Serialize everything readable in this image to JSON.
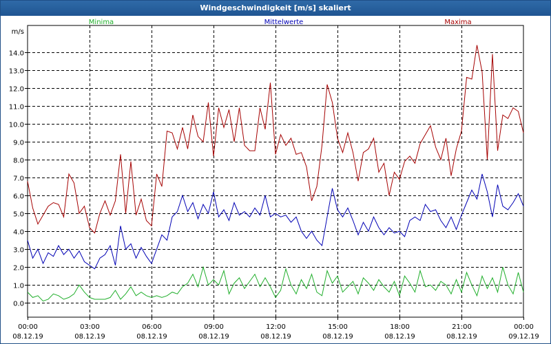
{
  "window": {
    "title": "Windgeschwindigkeit [m/s] skaliert"
  },
  "colors": {
    "min": "#1fae2a",
    "mean": "#0000b4",
    "max": "#a50000"
  },
  "chart_data": {
    "type": "line",
    "title": "Windgeschwindigkeit [m/s] skaliert",
    "ylabel": "m/s",
    "xlabel": "",
    "ylim": [
      -0.8,
      15.5
    ],
    "xlim": [
      0,
      24
    ],
    "grid": true,
    "legend_position": "top",
    "y_ticks": [
      "0.0",
      "1.0",
      "2.0",
      "3.0",
      "4.0",
      "5.0",
      "6.0",
      "7.0",
      "8.0",
      "9.0",
      "10.0",
      "11.0",
      "12.0",
      "13.0",
      "14.0"
    ],
    "x_ticks": [
      {
        "time": "00:00",
        "date": "08.12.19"
      },
      {
        "time": "03:00",
        "date": "08.12.19"
      },
      {
        "time": "06:00",
        "date": "08.12.19"
      },
      {
        "time": "09:00",
        "date": "08.12.19"
      },
      {
        "time": "12:00",
        "date": "08.12.19"
      },
      {
        "time": "15:00",
        "date": "08.12.19"
      },
      {
        "time": "18:00",
        "date": "08.12.19"
      },
      {
        "time": "21:00",
        "date": "08.12.19"
      },
      {
        "time": "00:00",
        "date": "09.12.19"
      }
    ],
    "series": [
      {
        "name": "Minima",
        "key": "min",
        "points": [
          [
            0.0,
            0.6
          ],
          [
            0.25,
            0.3
          ],
          [
            0.5,
            0.4
          ],
          [
            0.75,
            0.1
          ],
          [
            1.0,
            0.2
          ],
          [
            1.25,
            0.5
          ],
          [
            1.5,
            0.4
          ],
          [
            1.75,
            0.2
          ],
          [
            2.0,
            0.3
          ],
          [
            2.25,
            0.5
          ],
          [
            2.5,
            1.0
          ],
          [
            2.75,
            0.6
          ],
          [
            3.0,
            0.3
          ],
          [
            3.25,
            0.2
          ],
          [
            3.5,
            0.2
          ],
          [
            3.75,
            0.2
          ],
          [
            4.0,
            0.3
          ],
          [
            4.25,
            0.7
          ],
          [
            4.5,
            0.2
          ],
          [
            4.75,
            0.5
          ],
          [
            5.0,
            0.9
          ],
          [
            5.25,
            0.4
          ],
          [
            5.5,
            0.6
          ],
          [
            5.75,
            0.4
          ],
          [
            6.0,
            0.3
          ],
          [
            6.25,
            0.4
          ],
          [
            6.5,
            0.3
          ],
          [
            6.75,
            0.4
          ],
          [
            7.0,
            0.6
          ],
          [
            7.25,
            0.5
          ],
          [
            7.5,
            0.9
          ],
          [
            7.75,
            1.1
          ],
          [
            8.0,
            1.6
          ],
          [
            8.25,
            0.9
          ],
          [
            8.5,
            2.0
          ],
          [
            8.75,
            1.0
          ],
          [
            9.0,
            1.3
          ],
          [
            9.25,
            1.0
          ],
          [
            9.5,
            1.8
          ],
          [
            9.75,
            0.5
          ],
          [
            10.0,
            1.1
          ],
          [
            10.25,
            1.4
          ],
          [
            10.5,
            0.8
          ],
          [
            10.75,
            1.2
          ],
          [
            11.0,
            1.6
          ],
          [
            11.25,
            0.9
          ],
          [
            11.5,
            1.4
          ],
          [
            11.75,
            0.9
          ],
          [
            12.0,
            0.3
          ],
          [
            12.25,
            0.7
          ],
          [
            12.5,
            1.9
          ],
          [
            12.75,
            1.0
          ],
          [
            13.0,
            0.5
          ],
          [
            13.25,
            1.3
          ],
          [
            13.5,
            0.8
          ],
          [
            13.75,
            1.6
          ],
          [
            14.0,
            0.6
          ],
          [
            14.25,
            0.4
          ],
          [
            14.5,
            1.8
          ],
          [
            14.75,
            1.1
          ],
          [
            15.0,
            1.5
          ],
          [
            15.25,
            0.6
          ],
          [
            15.5,
            0.9
          ],
          [
            15.75,
            1.2
          ],
          [
            16.0,
            0.5
          ],
          [
            16.25,
            1.4
          ],
          [
            16.5,
            1.1
          ],
          [
            16.75,
            0.7
          ],
          [
            17.0,
            1.3
          ],
          [
            17.25,
            0.9
          ],
          [
            17.5,
            0.6
          ],
          [
            17.75,
            1.2
          ],
          [
            18.0,
            0.4
          ],
          [
            18.25,
            1.5
          ],
          [
            18.5,
            1.1
          ],
          [
            18.75,
            0.6
          ],
          [
            19.0,
            1.8
          ],
          [
            19.25,
            0.9
          ],
          [
            19.5,
            1.0
          ],
          [
            19.75,
            0.7
          ],
          [
            20.0,
            1.2
          ],
          [
            20.25,
            1.0
          ],
          [
            20.5,
            0.5
          ],
          [
            20.75,
            1.3
          ],
          [
            21.0,
            0.6
          ],
          [
            21.25,
            1.7
          ],
          [
            21.5,
            1.0
          ],
          [
            21.75,
            0.4
          ],
          [
            22.0,
            1.5
          ],
          [
            22.25,
            0.8
          ],
          [
            22.5,
            1.4
          ],
          [
            22.75,
            0.6
          ],
          [
            23.0,
            2.0
          ],
          [
            23.25,
            1.0
          ],
          [
            23.5,
            0.5
          ],
          [
            23.75,
            1.7
          ],
          [
            24.0,
            0.6
          ]
        ]
      },
      {
        "name": "Mittelwerte",
        "key": "mean",
        "points": [
          [
            0.0,
            3.5
          ],
          [
            0.25,
            2.5
          ],
          [
            0.5,
            3.0
          ],
          [
            0.75,
            2.2
          ],
          [
            1.0,
            2.8
          ],
          [
            1.25,
            2.6
          ],
          [
            1.5,
            3.2
          ],
          [
            1.75,
            2.7
          ],
          [
            2.0,
            3.0
          ],
          [
            2.25,
            2.5
          ],
          [
            2.5,
            2.9
          ],
          [
            2.75,
            2.3
          ],
          [
            3.0,
            2.1
          ],
          [
            3.25,
            1.9
          ],
          [
            3.5,
            2.5
          ],
          [
            3.75,
            2.7
          ],
          [
            4.0,
            3.2
          ],
          [
            4.25,
            2.1
          ],
          [
            4.5,
            4.3
          ],
          [
            4.75,
            3.0
          ],
          [
            5.0,
            3.3
          ],
          [
            5.25,
            2.5
          ],
          [
            5.5,
            3.1
          ],
          [
            5.75,
            2.6
          ],
          [
            6.0,
            2.2
          ],
          [
            6.25,
            3.0
          ],
          [
            6.5,
            3.8
          ],
          [
            6.75,
            3.5
          ],
          [
            7.0,
            4.8
          ],
          [
            7.25,
            5.1
          ],
          [
            7.5,
            6.0
          ],
          [
            7.75,
            5.1
          ],
          [
            8.0,
            5.6
          ],
          [
            8.25,
            4.7
          ],
          [
            8.5,
            5.5
          ],
          [
            8.75,
            5.0
          ],
          [
            9.0,
            6.2
          ],
          [
            9.25,
            4.8
          ],
          [
            9.5,
            5.2
          ],
          [
            9.75,
            4.6
          ],
          [
            10.0,
            5.6
          ],
          [
            10.25,
            4.9
          ],
          [
            10.5,
            5.1
          ],
          [
            10.75,
            4.8
          ],
          [
            11.0,
            5.3
          ],
          [
            11.25,
            4.9
          ],
          [
            11.5,
            6.0
          ],
          [
            11.75,
            4.8
          ],
          [
            12.0,
            5.0
          ],
          [
            12.25,
            4.8
          ],
          [
            12.5,
            4.9
          ],
          [
            12.75,
            4.5
          ],
          [
            13.0,
            4.8
          ],
          [
            13.25,
            4.0
          ],
          [
            13.5,
            3.6
          ],
          [
            13.75,
            4.0
          ],
          [
            14.0,
            3.5
          ],
          [
            14.25,
            3.2
          ],
          [
            14.5,
            4.8
          ],
          [
            14.75,
            6.4
          ],
          [
            15.0,
            5.2
          ],
          [
            15.25,
            4.8
          ],
          [
            15.5,
            5.3
          ],
          [
            15.75,
            4.6
          ],
          [
            16.0,
            3.8
          ],
          [
            16.25,
            4.5
          ],
          [
            16.5,
            4.0
          ],
          [
            16.75,
            4.8
          ],
          [
            17.0,
            4.2
          ],
          [
            17.25,
            3.8
          ],
          [
            17.5,
            4.2
          ],
          [
            17.75,
            3.9
          ],
          [
            18.0,
            4.0
          ],
          [
            18.25,
            3.7
          ],
          [
            18.5,
            4.6
          ],
          [
            18.75,
            4.8
          ],
          [
            19.0,
            4.6
          ],
          [
            19.25,
            5.5
          ],
          [
            19.5,
            5.1
          ],
          [
            19.75,
            5.2
          ],
          [
            20.0,
            4.6
          ],
          [
            20.25,
            4.2
          ],
          [
            20.5,
            4.8
          ],
          [
            20.75,
            4.1
          ],
          [
            21.0,
            4.9
          ],
          [
            21.25,
            5.6
          ],
          [
            21.5,
            6.3
          ],
          [
            21.75,
            5.8
          ],
          [
            22.0,
            7.2
          ],
          [
            22.25,
            6.2
          ],
          [
            22.5,
            4.8
          ],
          [
            22.75,
            6.6
          ],
          [
            23.0,
            5.4
          ],
          [
            23.25,
            5.2
          ],
          [
            23.5,
            5.6
          ],
          [
            23.75,
            6.1
          ],
          [
            24.0,
            5.4
          ]
        ]
      },
      {
        "name": "Maxima",
        "key": "max",
        "points": [
          [
            0.0,
            6.8
          ],
          [
            0.25,
            5.3
          ],
          [
            0.5,
            4.4
          ],
          [
            0.75,
            4.9
          ],
          [
            1.0,
            5.4
          ],
          [
            1.25,
            5.6
          ],
          [
            1.5,
            5.5
          ],
          [
            1.75,
            4.8
          ],
          [
            2.0,
            7.2
          ],
          [
            2.25,
            6.7
          ],
          [
            2.5,
            5.0
          ],
          [
            2.75,
            5.4
          ],
          [
            3.0,
            4.2
          ],
          [
            3.25,
            3.9
          ],
          [
            3.5,
            5.0
          ],
          [
            3.75,
            5.7
          ],
          [
            4.0,
            4.9
          ],
          [
            4.25,
            5.7
          ],
          [
            4.5,
            8.3
          ],
          [
            4.75,
            5.0
          ],
          [
            5.0,
            7.9
          ],
          [
            5.25,
            4.9
          ],
          [
            5.5,
            5.8
          ],
          [
            5.75,
            4.6
          ],
          [
            6.0,
            4.3
          ],
          [
            6.25,
            7.2
          ],
          [
            6.5,
            6.5
          ],
          [
            6.75,
            9.6
          ],
          [
            7.0,
            9.5
          ],
          [
            7.25,
            8.6
          ],
          [
            7.5,
            9.8
          ],
          [
            7.75,
            8.6
          ],
          [
            8.0,
            10.5
          ],
          [
            8.25,
            9.3
          ],
          [
            8.5,
            9.0
          ],
          [
            8.75,
            11.2
          ],
          [
            9.0,
            8.2
          ],
          [
            9.25,
            10.9
          ],
          [
            9.5,
            9.8
          ],
          [
            9.75,
            10.8
          ],
          [
            10.0,
            9.0
          ],
          [
            10.25,
            10.9
          ],
          [
            10.5,
            8.8
          ],
          [
            10.75,
            8.5
          ],
          [
            11.0,
            8.5
          ],
          [
            11.25,
            10.9
          ],
          [
            11.5,
            9.7
          ],
          [
            11.75,
            12.3
          ],
          [
            12.0,
            8.3
          ],
          [
            12.25,
            9.4
          ],
          [
            12.5,
            8.8
          ],
          [
            12.75,
            9.2
          ],
          [
            13.0,
            8.3
          ],
          [
            13.25,
            8.4
          ],
          [
            13.5,
            7.6
          ],
          [
            13.75,
            5.7
          ],
          [
            14.0,
            6.5
          ],
          [
            14.25,
            8.8
          ],
          [
            14.5,
            12.2
          ],
          [
            14.75,
            11.2
          ],
          [
            15.0,
            9.2
          ],
          [
            15.25,
            8.4
          ],
          [
            15.5,
            9.5
          ],
          [
            15.75,
            8.4
          ],
          [
            16.0,
            6.8
          ],
          [
            16.25,
            8.4
          ],
          [
            16.5,
            8.6
          ],
          [
            16.75,
            9.2
          ],
          [
            17.0,
            7.3
          ],
          [
            17.25,
            7.8
          ],
          [
            17.5,
            6.0
          ],
          [
            17.75,
            7.3
          ],
          [
            18.0,
            6.9
          ],
          [
            18.25,
            7.9
          ],
          [
            18.5,
            8.2
          ],
          [
            18.75,
            7.8
          ],
          [
            19.0,
            8.9
          ],
          [
            19.25,
            9.4
          ],
          [
            19.5,
            9.9
          ],
          [
            19.75,
            8.7
          ],
          [
            20.0,
            8.0
          ],
          [
            20.25,
            9.2
          ],
          [
            20.5,
            7.1
          ],
          [
            20.75,
            8.6
          ],
          [
            21.0,
            9.6
          ],
          [
            21.25,
            12.6
          ],
          [
            21.5,
            12.5
          ],
          [
            21.75,
            14.4
          ],
          [
            22.0,
            12.9
          ],
          [
            22.25,
            8.0
          ],
          [
            22.5,
            13.9
          ],
          [
            22.75,
            8.5
          ],
          [
            23.0,
            10.5
          ],
          [
            23.25,
            10.3
          ],
          [
            23.5,
            10.9
          ],
          [
            23.75,
            10.7
          ],
          [
            24.0,
            9.5
          ]
        ]
      }
    ]
  }
}
